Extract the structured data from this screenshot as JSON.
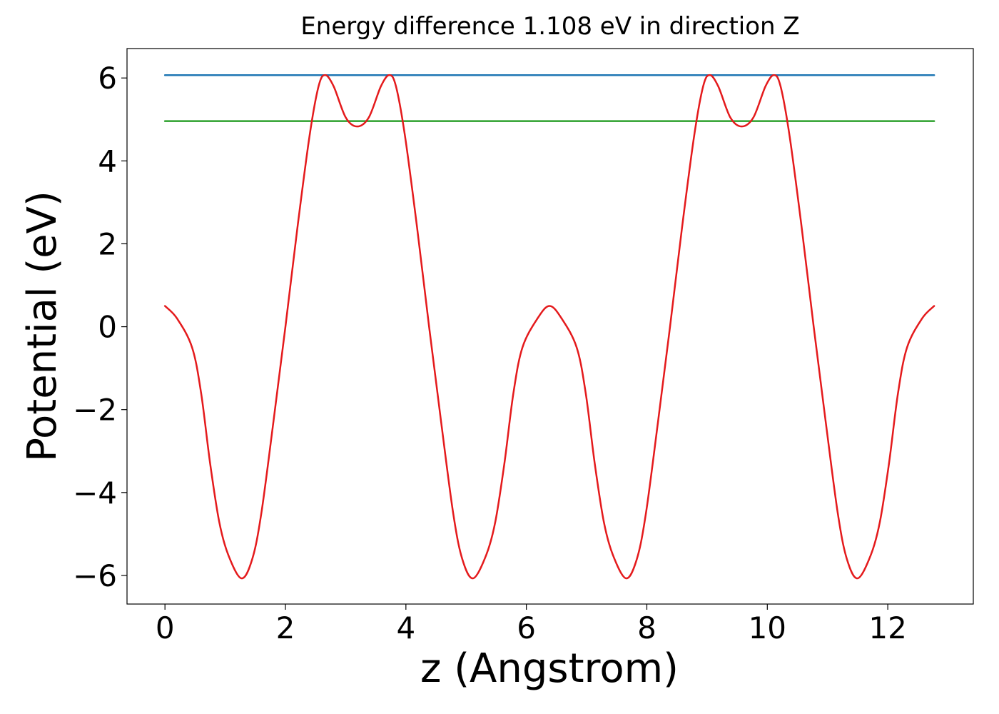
{
  "chart_data": {
    "type": "line",
    "title": "Energy difference 1.108 eV in direction Z",
    "x_label": "z (Angstrom)",
    "y_label": "Potential (eV)",
    "xlim": [
      -0.63,
      13.42
    ],
    "ylim": [
      -6.69,
      6.71
    ],
    "xticks": [
      0,
      2,
      4,
      6,
      8,
      10,
      12
    ],
    "yticks": [
      {
        "value": -6,
        "label": "−6"
      },
      {
        "value": -4,
        "label": "−4"
      },
      {
        "value": -2,
        "label": "−2"
      },
      0,
      2,
      4,
      6
    ],
    "grid": false,
    "series": [
      {
        "color": "#1f77b4",
        "x": [
          0,
          12.77
        ],
        "values": [
          6.068,
          6.068
        ]
      },
      {
        "color": "#2ca02c",
        "x": [
          0,
          12.77
        ],
        "values": [
          4.96,
          4.96
        ]
      },
      {
        "color": "#e41a1c",
        "x": [
          0,
          0.2,
          0.45,
          0.6,
          0.75,
          0.9,
          1.05,
          1.27,
          1.45,
          1.6,
          1.8,
          2.0,
          2.2,
          2.4,
          2.55,
          2.66,
          2.8,
          3.0,
          3.19,
          3.385,
          3.585,
          3.725,
          3.835,
          3.985,
          4.185,
          4.385,
          4.585,
          4.785,
          4.935,
          5.115,
          5.335,
          5.485,
          5.635,
          5.785,
          5.935,
          6.185,
          6.385,
          6.585,
          6.835,
          6.985,
          7.135,
          7.285,
          7.435,
          7.655,
          7.835,
          7.985,
          8.185,
          8.385,
          8.585,
          8.785,
          8.935,
          9.045,
          9.185,
          9.385,
          9.575,
          9.77,
          9.97,
          10.11,
          10.22,
          10.37,
          10.57,
          10.77,
          10.97,
          11.17,
          11.32,
          11.5,
          11.72,
          11.87,
          12.02,
          12.17,
          12.32,
          12.57,
          12.77
        ],
        "values": [
          0.5,
          0.2,
          -0.5,
          -1.6,
          -3.3,
          -4.7,
          -5.5,
          -6.07,
          -5.6,
          -4.5,
          -2.3,
          0.0,
          2.4,
          4.6,
          5.8,
          6.07,
          5.8,
          5.05,
          4.83,
          5.05,
          5.8,
          6.07,
          5.8,
          4.6,
          2.4,
          0.0,
          -2.3,
          -4.5,
          -5.6,
          -6.07,
          -5.5,
          -4.7,
          -3.3,
          -1.6,
          -0.5,
          0.2,
          0.5,
          0.2,
          -0.5,
          -1.6,
          -3.3,
          -4.7,
          -5.5,
          -6.07,
          -5.6,
          -4.5,
          -2.3,
          0.0,
          2.4,
          4.6,
          5.8,
          6.07,
          5.8,
          5.05,
          4.83,
          5.05,
          5.8,
          6.07,
          5.8,
          4.6,
          2.4,
          0.0,
          -2.3,
          -4.5,
          -5.6,
          -6.07,
          -5.5,
          -4.7,
          -3.3,
          -1.6,
          -0.5,
          0.2,
          0.5
        ]
      }
    ]
  }
}
